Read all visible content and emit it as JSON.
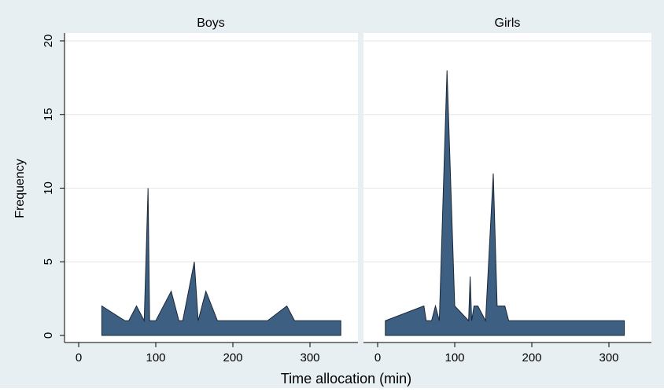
{
  "chart_data": {
    "type": "area",
    "xlabel": "Time allocation (min)",
    "ylabel": "Frequency",
    "xlim": [
      0,
      350
    ],
    "ylim": [
      0,
      20
    ],
    "x_ticks": [
      0,
      100,
      200,
      300
    ],
    "y_ticks": [
      0,
      5,
      10,
      15,
      20
    ],
    "grid": true,
    "colors": {
      "fill": "#3d5f82",
      "stroke": "#1a2838",
      "panel_header": "#e8eff3",
      "outer_background": "#e8eff3",
      "grid": "#e6e6e6"
    },
    "panels": [
      {
        "title": "Boys",
        "x": [
          30,
          60,
          65,
          75,
          85,
          90,
          92,
          100,
          120,
          130,
          135,
          150,
          155,
          165,
          180,
          245,
          270,
          280,
          340
        ],
        "y": [
          2,
          1,
          1,
          2,
          1,
          10,
          1,
          1,
          3,
          1,
          1,
          5,
          1,
          3,
          1,
          1,
          2,
          1,
          1
        ]
      },
      {
        "title": "Girls",
        "x": [
          10,
          60,
          63,
          70,
          75,
          80,
          90,
          100,
          118,
          120,
          122,
          125,
          130,
          140,
          150,
          155,
          165,
          170,
          320
        ],
        "y": [
          1,
          2,
          1,
          1,
          2,
          1,
          18,
          2,
          1,
          4,
          1,
          2,
          2,
          1,
          11,
          2,
          2,
          1,
          1
        ]
      }
    ]
  }
}
